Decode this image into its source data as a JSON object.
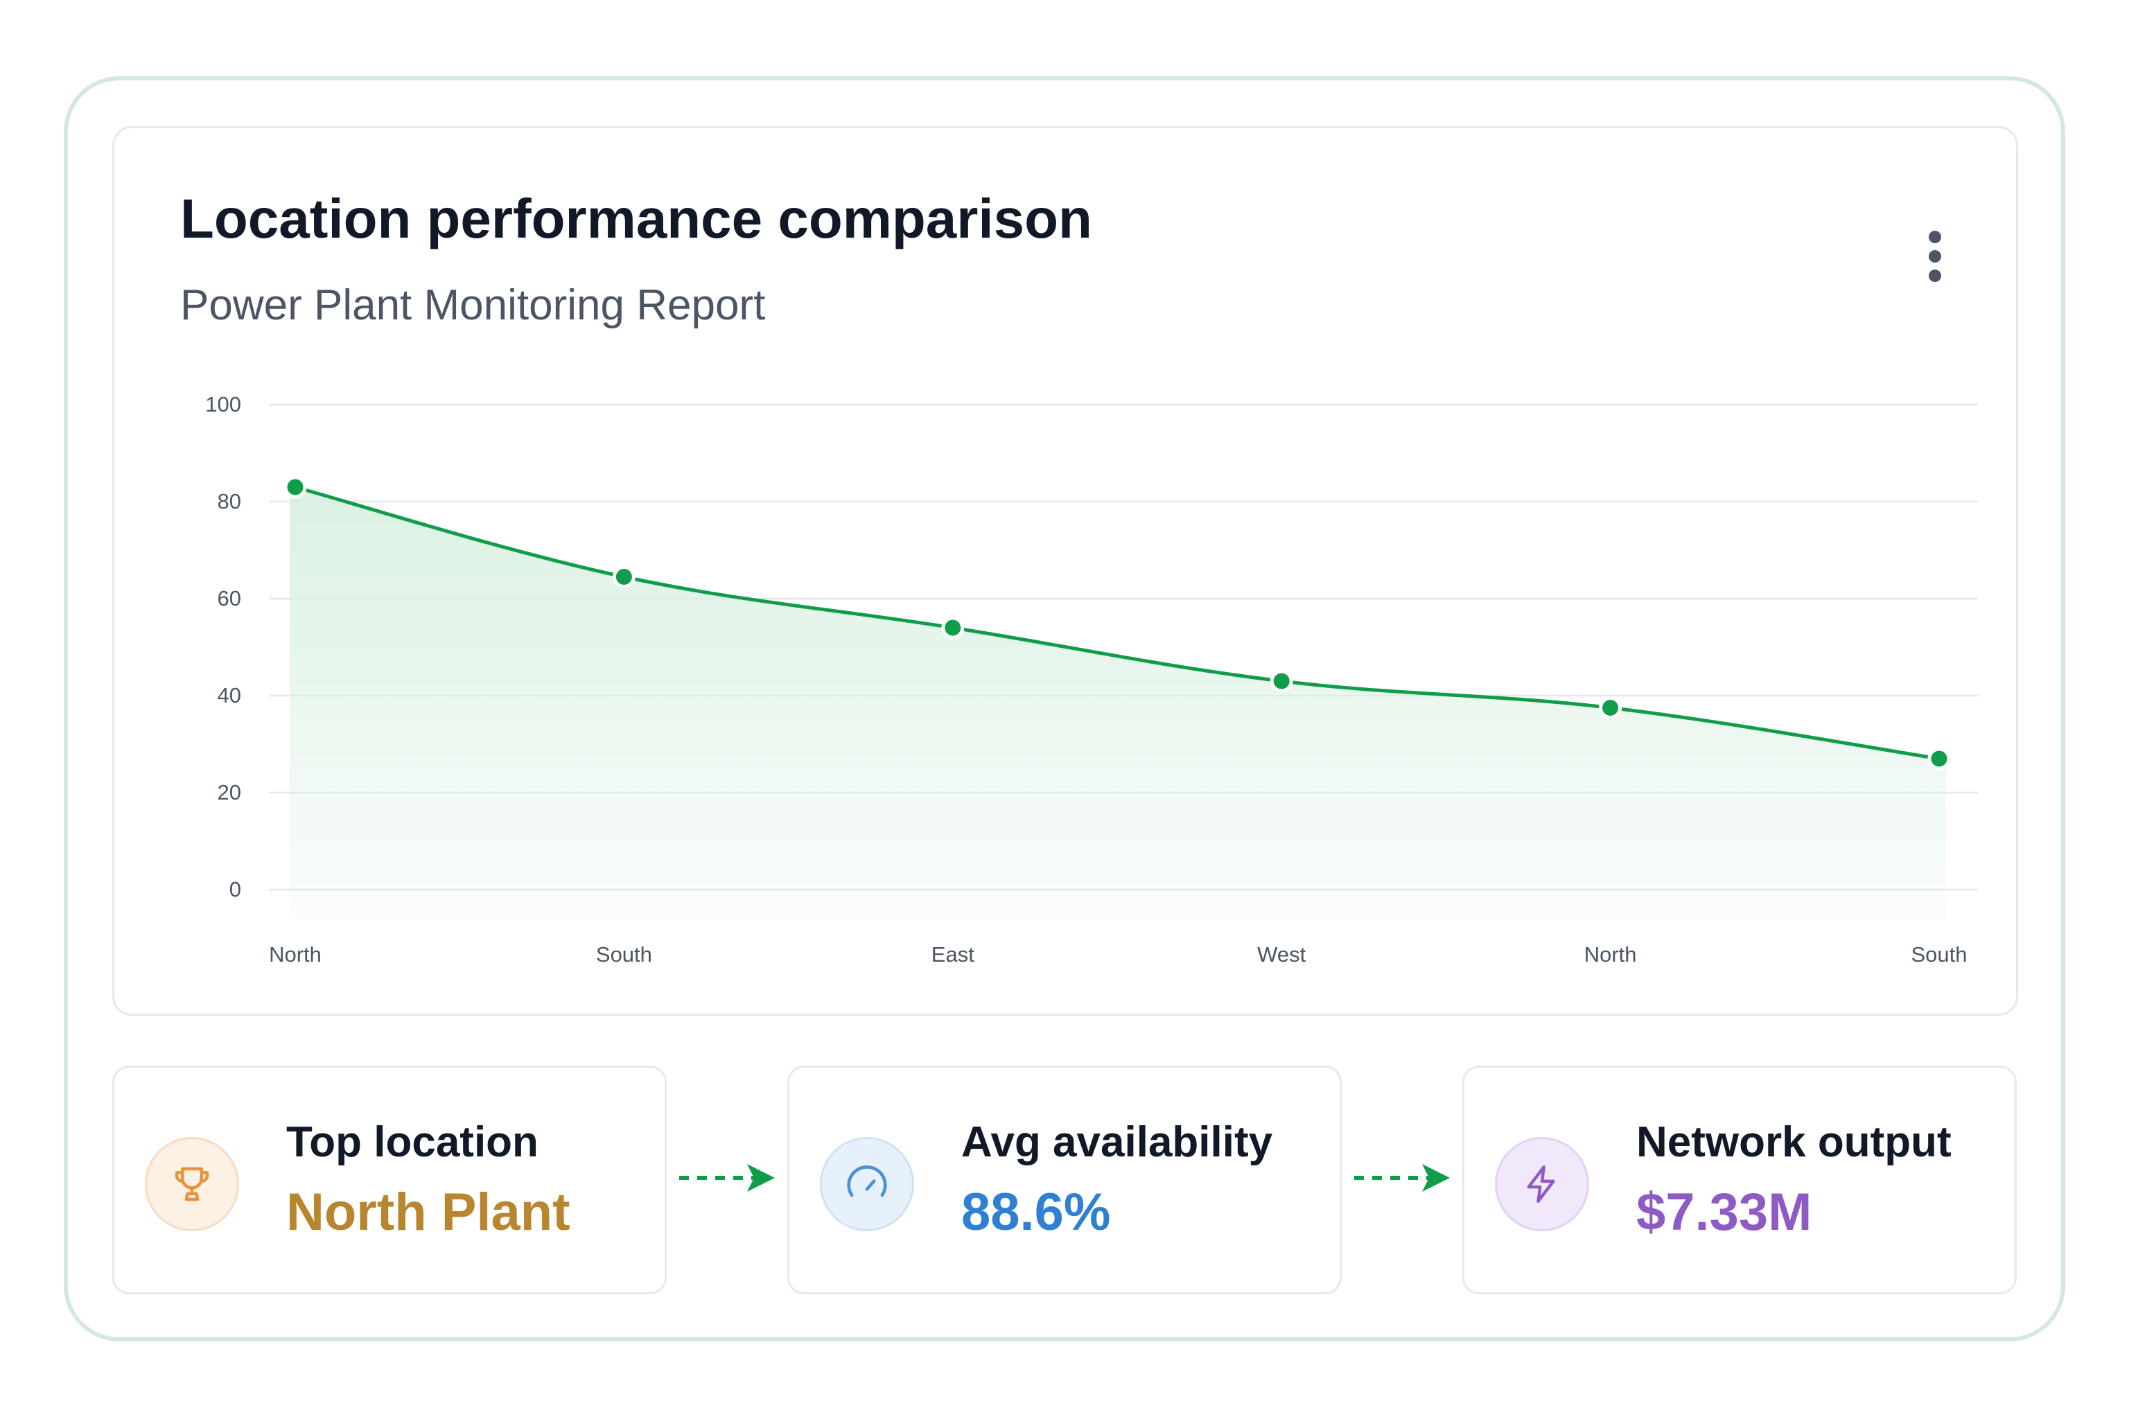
{
  "header": {
    "title": "Location performance comparison",
    "subtitle": "Power Plant Monitoring Report",
    "menu_icon": "more-vertical-icon"
  },
  "chart_data": {
    "type": "area",
    "categories": [
      "North",
      "South",
      "East",
      "West",
      "North",
      "South"
    ],
    "series": [
      {
        "values": [
          83,
          64.5,
          54,
          43,
          37.5,
          27
        ]
      }
    ],
    "ylim": [
      0,
      100
    ],
    "yticks": [
      0,
      20,
      40,
      60,
      80,
      100
    ],
    "grid": true,
    "xlabel": "",
    "ylabel": ""
  },
  "stats": [
    {
      "label": "Top location",
      "value": "North Plant",
      "icon": "trophy-icon",
      "color": "#b8862f",
      "icon_color": "#e8913a",
      "icon_bg": "#fdf1e4"
    },
    {
      "label": "Avg availability",
      "value": "88.6%",
      "icon": "gauge-icon",
      "color": "#2f7fd3",
      "icon_color": "#4a90d9",
      "icon_bg": "#e6f1fc"
    },
    {
      "label": "Network output",
      "value": "$7.33M",
      "icon": "lightning-icon",
      "color": "#8e5bc4",
      "icon_color": "#8e5bc4",
      "icon_bg": "#f1e8fb"
    }
  ],
  "colors": {
    "line": "#0f9d4a",
    "point": "#0f9d4a",
    "area_top": "#d9f0e1",
    "grid": "#e5e7eb",
    "tick": "#4b5563",
    "arrow": "#0f9d4a",
    "frame_border": "#d3e9e0"
  }
}
